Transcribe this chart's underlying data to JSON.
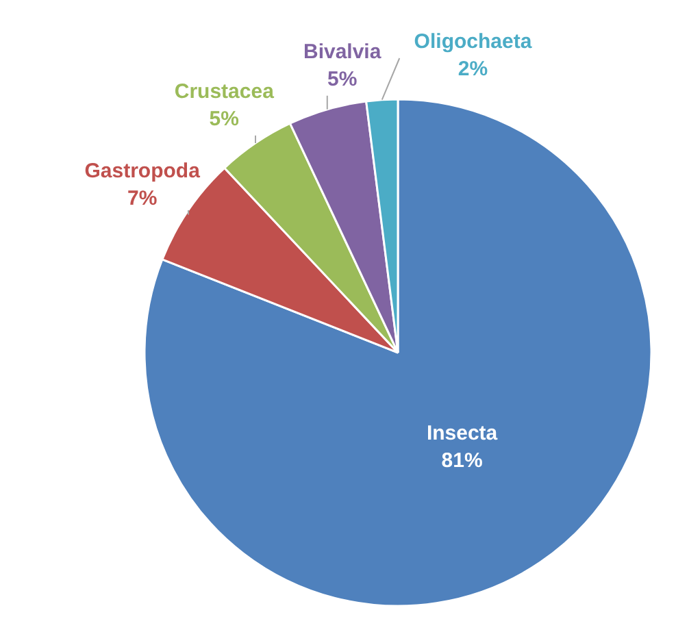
{
  "chart_data": {
    "type": "pie",
    "categories": [
      "Insecta",
      "Gastropoda",
      "Crustacea",
      "Bivalvia",
      "Oligochaeta"
    ],
    "values": [
      81,
      7,
      5,
      5,
      2
    ],
    "colors": [
      "#4f81bd",
      "#c0504d",
      "#9bbb59",
      "#8064a2",
      "#4bacc6"
    ],
    "value_labels": [
      "81%",
      "7%",
      "5%",
      "5%",
      "2%"
    ]
  }
}
